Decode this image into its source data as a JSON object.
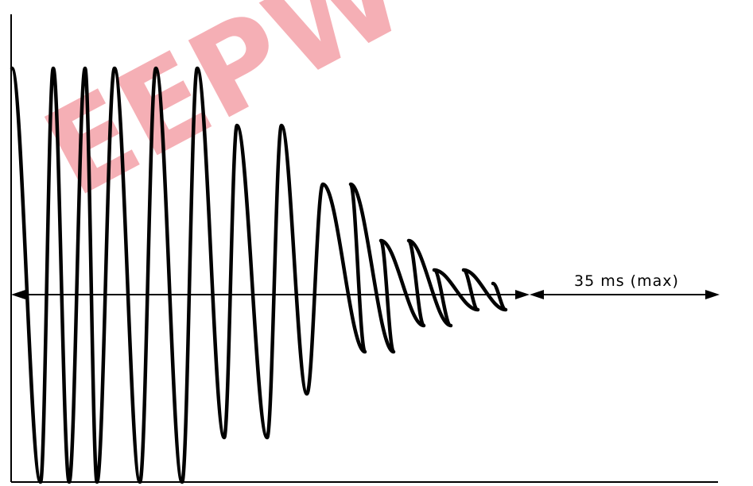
{
  "diagram": {
    "type": "damped-oscillation-waveform",
    "duration_label": "35 ms (max)",
    "watermark": "EEPW",
    "colors": {
      "line": "#000000",
      "background": "#ffffff",
      "watermark": "#e8414f"
    }
  }
}
